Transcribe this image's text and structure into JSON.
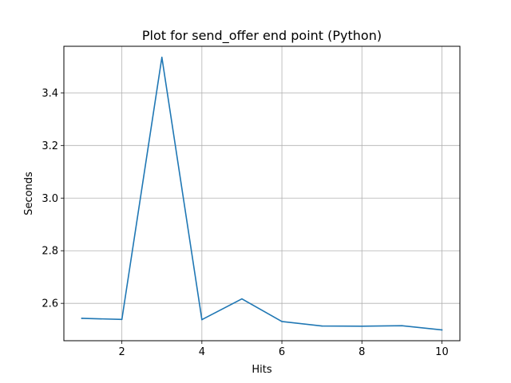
{
  "chart_data": {
    "type": "line",
    "title": "Plot for send_offer end point (Python)",
    "xlabel": "Hits",
    "ylabel": "Seconds",
    "xlim": [
      0.55,
      10.45
    ],
    "ylim": [
      2.458,
      3.577
    ],
    "xticks": [
      2,
      4,
      6,
      8,
      10
    ],
    "xtick_labels": [
      "2",
      "4",
      "6",
      "8",
      "10"
    ],
    "yticks": [
      2.6,
      2.8,
      3.0,
      3.2,
      3.4
    ],
    "ytick_labels": [
      "2.6",
      "2.8",
      "3.0",
      "3.2",
      "3.4"
    ],
    "grid": true,
    "series": [
      {
        "color": "#1f77b4",
        "x": [
          1,
          2,
          3,
          4,
          5,
          6,
          7,
          8,
          9,
          10
        ],
        "y": [
          2.543,
          2.539,
          3.535,
          2.538,
          2.617,
          2.531,
          2.514,
          2.513,
          2.515,
          2.499
        ]
      }
    ]
  }
}
